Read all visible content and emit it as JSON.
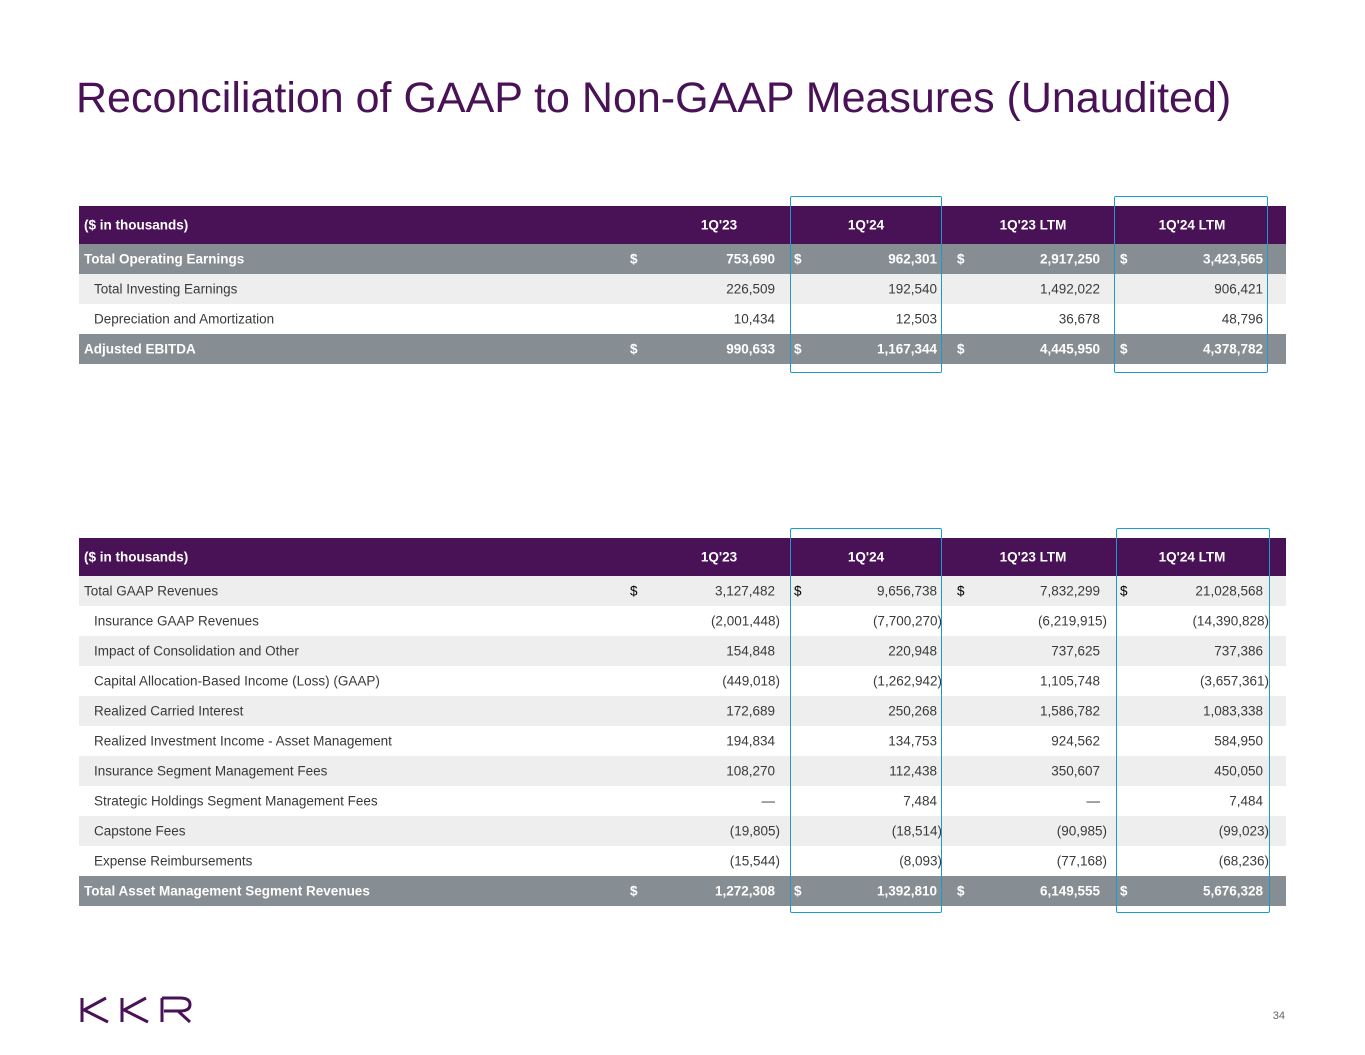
{
  "title": "Reconciliation of GAAP to Non-GAAP Measures (Unaudited)",
  "colors": {
    "header_bg": "#4a1256",
    "total_bg": "#878e93",
    "highlight": "#1a9bd0",
    "title": "#4a1256"
  },
  "table1": {
    "header": {
      "label": "($ in thousands)",
      "cols": [
        "1Q'23",
        "1Q'24",
        "1Q'23 LTM",
        "1Q'24 LTM"
      ]
    },
    "rows": [
      {
        "label": "Total Operating Earnings",
        "values": [
          "753,690",
          "962,301",
          "2,917,250",
          "3,423,565"
        ],
        "currency": "$"
      },
      {
        "label": "Total Investing Earnings",
        "values": [
          "226,509",
          "192,540",
          "1,492,022",
          "906,421"
        ]
      },
      {
        "label": "Depreciation and Amortization",
        "values": [
          "10,434",
          "12,503",
          "36,678",
          "48,796"
        ]
      },
      {
        "label": "Adjusted EBITDA",
        "values": [
          "990,633",
          "1,167,344",
          "4,445,950",
          "4,378,782"
        ],
        "currency": "$"
      }
    ]
  },
  "table2": {
    "header": {
      "label": "($ in thousands)",
      "cols": [
        "1Q'23",
        "1Q'24",
        "1Q'23 LTM",
        "1Q'24 LTM"
      ]
    },
    "rows": [
      {
        "label": "Total GAAP Revenues",
        "values": [
          "3,127,482",
          "9,656,738",
          "7,832,299",
          "21,028,568"
        ],
        "currency": "$"
      },
      {
        "label": "Insurance GAAP Revenues",
        "values": [
          "(2,001,448)",
          "(7,700,270)",
          "(6,219,915)",
          "(14,390,828)"
        ]
      },
      {
        "label": "Impact of Consolidation and Other",
        "values": [
          "154,848",
          "220,948",
          "737,625",
          "737,386"
        ]
      },
      {
        "label": "Capital Allocation-Based Income (Loss) (GAAP)",
        "values": [
          "(449,018)",
          "(1,262,942)",
          "1,105,748",
          "(3,657,361)"
        ]
      },
      {
        "label": "Realized Carried Interest",
        "values": [
          "172,689",
          "250,268",
          "1,586,782",
          "1,083,338"
        ]
      },
      {
        "label": "Realized Investment Income - Asset Management",
        "values": [
          "194,834",
          "134,753",
          "924,562",
          "584,950"
        ]
      },
      {
        "label": "Insurance Segment Management Fees",
        "values": [
          "108,270",
          "112,438",
          "350,607",
          "450,050"
        ]
      },
      {
        "label": "Strategic Holdings Segment Management Fees",
        "values": [
          "—",
          "7,484",
          "—",
          "7,484"
        ]
      },
      {
        "label": "Capstone Fees",
        "values": [
          "(19,805)",
          "(18,514)",
          "(90,985)",
          "(99,023)"
        ]
      },
      {
        "label": "Expense Reimbursements",
        "values": [
          "(15,544)",
          "(8,093)",
          "(77,168)",
          "(68,236)"
        ]
      },
      {
        "label": "Total Asset Management Segment Revenues",
        "values": [
          "1,272,308",
          "1,392,810",
          "6,149,555",
          "5,676,328"
        ],
        "currency": "$"
      }
    ]
  },
  "logo": {
    "text": "KKR"
  },
  "page_number": "34"
}
